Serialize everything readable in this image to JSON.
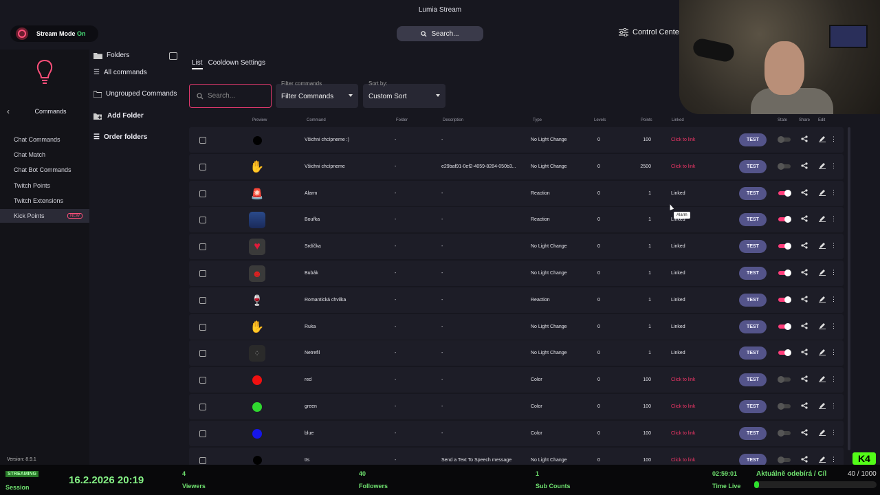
{
  "window": {
    "title": "Lumia Stream"
  },
  "topbar": {
    "stream_mode_label": "Stream Mode",
    "stream_mode_state": "On",
    "search_label": "Search...",
    "control_center_label": "Control Center"
  },
  "leftnav": {
    "section_title": "Commands",
    "items": [
      {
        "label": "Chat Commands"
      },
      {
        "label": "Chat Match"
      },
      {
        "label": "Chat Bot Commands"
      },
      {
        "label": "Twitch Points"
      },
      {
        "label": "Twitch Extensions"
      },
      {
        "label": "Kick Points",
        "badge": "NEW"
      }
    ],
    "version": "Version: 8.9.1"
  },
  "folders": {
    "title": "Folders",
    "all_commands": "All commands",
    "ungrouped": "Ungrouped Commands",
    "add_folder": "Add Folder",
    "order_folders": "Order folders"
  },
  "main": {
    "tabs": [
      "List",
      "Cooldown Settings"
    ],
    "search_placeholder": "Search...",
    "filter_caption": "Filter commands",
    "filter_value": "Filter Commands",
    "sort_caption": "Sort by:",
    "sort_value": "Custom Sort",
    "columns": {
      "preview": "Preview",
      "command": "Command",
      "folder": "Folder",
      "description": "Description",
      "type": "Type",
      "levels": "Levels",
      "points": "Points",
      "linked": "Linked",
      "state": "State",
      "share": "Share",
      "edit": "Edit"
    },
    "test_label": "TEST",
    "tooltip": "Alarm",
    "rows": [
      {
        "command": "Všichni chcípneme :)",
        "folder": "-",
        "description": "-",
        "type": "No Light Change",
        "levels": "0",
        "points": "100",
        "linked": "Click to link",
        "linked_state": "unlinked",
        "enabled": false,
        "preview": "black-dot"
      },
      {
        "command": "Všichni chcípneme",
        "folder": "-",
        "description": "e29baf91-0ef2-4059-8284-050b3...",
        "type": "No Light Change",
        "levels": "0",
        "points": "2500",
        "linked": "Click to link",
        "linked_state": "unlinked",
        "enabled": false,
        "preview": "hand-emoji"
      },
      {
        "command": "Alarm",
        "folder": "-",
        "description": "-",
        "type": "Reaction",
        "levels": "0",
        "points": "1",
        "linked": "Linked",
        "linked_state": "linked",
        "enabled": true,
        "preview": "siren-emoji"
      },
      {
        "command": "Bouřka",
        "folder": "-",
        "description": "-",
        "type": "Reaction",
        "levels": "0",
        "points": "1",
        "linked": "Linked",
        "linked_state": "linked",
        "enabled": true,
        "preview": "storm-image"
      },
      {
        "command": "Srdíčka",
        "folder": "-",
        "description": "-",
        "type": "No Light Change",
        "levels": "0",
        "points": "1",
        "linked": "Linked",
        "linked_state": "linked",
        "enabled": true,
        "preview": "heart-image"
      },
      {
        "command": "Bubák",
        "folder": "-",
        "description": "-",
        "type": "No Light Change",
        "levels": "0",
        "points": "1",
        "linked": "Linked",
        "linked_state": "linked",
        "enabled": true,
        "preview": "devil-image"
      },
      {
        "command": "Romantická chvilka",
        "folder": "-",
        "description": "-",
        "type": "Reaction",
        "levels": "0",
        "points": "1",
        "linked": "Linked",
        "linked_state": "linked",
        "enabled": true,
        "preview": "wine-emoji"
      },
      {
        "command": "Ruka",
        "folder": "-",
        "description": "-",
        "type": "No Light Change",
        "levels": "0",
        "points": "1",
        "linked": "Linked",
        "linked_state": "linked",
        "enabled": true,
        "preview": "hand-emoji"
      },
      {
        "command": "Netrefil",
        "folder": "-",
        "description": "-",
        "type": "No Light Change",
        "levels": "0",
        "points": "1",
        "linked": "Linked",
        "linked_state": "linked",
        "enabled": true,
        "preview": "dice-image"
      },
      {
        "command": "red",
        "folder": "-",
        "description": "-",
        "type": "Color",
        "levels": "0",
        "points": "100",
        "linked": "Click to link",
        "linked_state": "unlinked",
        "enabled": false,
        "preview": "red-dot"
      },
      {
        "command": "green",
        "folder": "-",
        "description": "-",
        "type": "Color",
        "levels": "0",
        "points": "100",
        "linked": "Click to link",
        "linked_state": "unlinked",
        "enabled": false,
        "preview": "green-dot"
      },
      {
        "command": "blue",
        "folder": "-",
        "description": "-",
        "type": "Color",
        "levels": "0",
        "points": "100",
        "linked": "Click to link",
        "linked_state": "unlinked",
        "enabled": false,
        "preview": "blue-dot"
      },
      {
        "command": "tts",
        "folder": "-",
        "description": "Send a Text To Speech message",
        "type": "No Light Change",
        "levels": "0",
        "points": "100",
        "linked": "Click to link",
        "linked_state": "unlinked",
        "enabled": false,
        "preview": "black-dot"
      }
    ]
  },
  "statusbar": {
    "live_badge": "STREAMING",
    "session_label": "Session",
    "datetime": "16.2.2026 20:19",
    "viewers_value": "4",
    "viewers_label": "Viewers",
    "followers_value": "40",
    "followers_label": "Followers",
    "subs_value": "1",
    "subs_label": "Sub Counts",
    "time_live_value": "02:59:01",
    "time_live_label": "Time Live",
    "goal_label": "Aktuálně odebírá / Cíl",
    "goal_count": "40 / 1000",
    "goal_progress": 0.04
  },
  "overlay": {
    "kick_logo": "K4"
  },
  "colors": {
    "accent": "#ff3d7a",
    "test_button": "#54548a",
    "status_green": "#6fe06f"
  }
}
